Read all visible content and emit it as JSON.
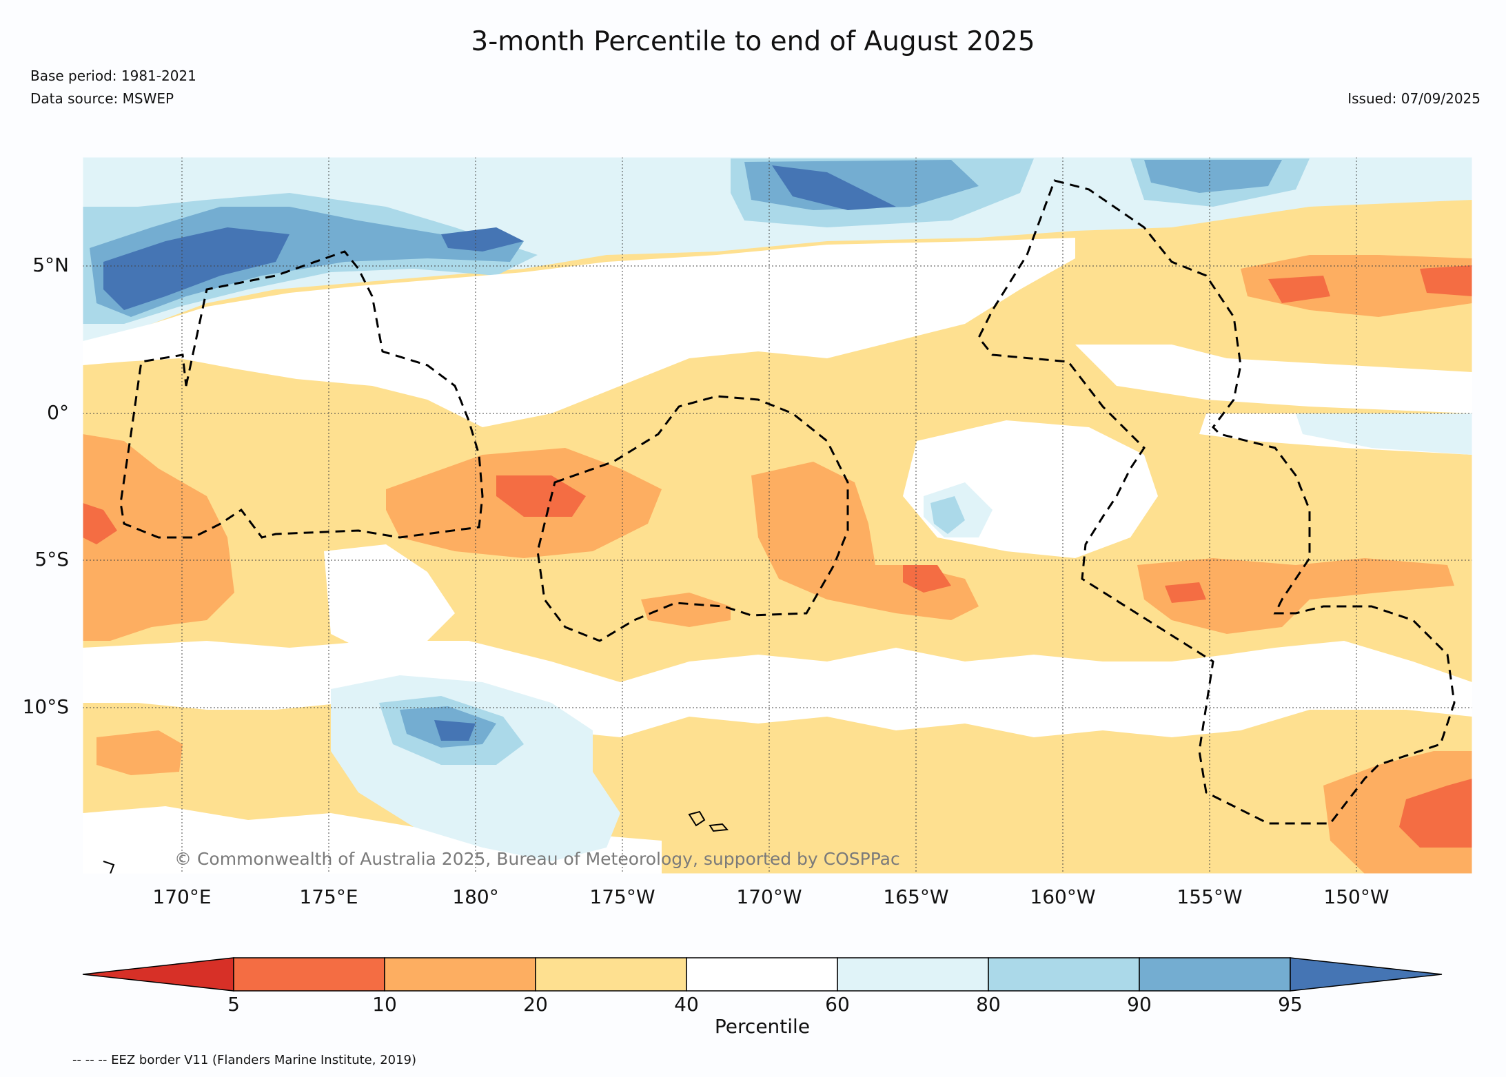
{
  "title": "3-month Percentile to end of August 2025",
  "base_period": "Base period: 1981-2021",
  "data_source": "Data source: MSWEP",
  "issued": "Issued: 07/09/2025",
  "copyright": "© Commonwealth of Australia 2025, Bureau of Meteorology, supported by COSPPac",
  "footnote": "-- -- -- EEZ border V11 (Flanders Marine Institute, 2019)",
  "lat_labels": [
    "5°N",
    "0°",
    "5°S",
    "10°S"
  ],
  "lon_labels": [
    "170°E",
    "175°E",
    "180°",
    "175°W",
    "170°W",
    "165°W",
    "160°W",
    "155°W",
    "150°W"
  ],
  "colorbar": {
    "title": "Percentile",
    "ticks": [
      "5",
      "10",
      "20",
      "40",
      "60",
      "80",
      "90",
      "95"
    ],
    "colors": {
      "below_5": "#d73027",
      "5_10": "#f46d43",
      "10_20": "#fdae61",
      "20_40": "#fee090",
      "40_60": "#ffffff",
      "60_80": "#e0f3f8",
      "80_90": "#abd9e9",
      "90_95": "#74add1",
      "above_95": "#4575b4"
    }
  }
}
